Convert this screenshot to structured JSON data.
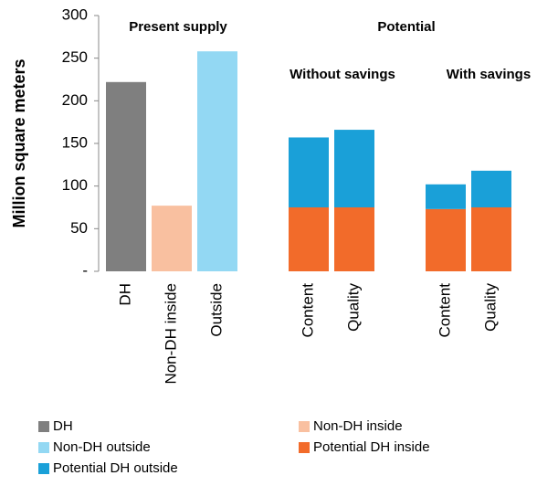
{
  "chart_data": {
    "type": "stacked_bar",
    "y_label": "Million square meters",
    "annotations": [
      "Present supply",
      "Potential",
      "Without savings",
      "With savings"
    ],
    "categories": [
      "DH",
      "Non-DH inside",
      "Outside",
      null,
      "Content",
      "Quality",
      null,
      "Content",
      "Quality"
    ],
    "series": [
      {
        "name": "DH",
        "color": "#7f7f7f",
        "values": [
          222,
          null,
          null,
          null,
          null,
          null,
          null,
          null,
          null
        ]
      },
      {
        "name": "Non-DH inside",
        "color": "#f9c0a0",
        "values": [
          null,
          77,
          null,
          null,
          null,
          null,
          null,
          null,
          null
        ]
      },
      {
        "name": "Non-DH outside",
        "color": "#93d8f3",
        "values": [
          null,
          null,
          258,
          null,
          null,
          null,
          null,
          null,
          null
        ]
      },
      {
        "name": "Potential DH inside",
        "color": "#f26b2a",
        "values": [
          null,
          null,
          null,
          null,
          75,
          75,
          null,
          73,
          75
        ]
      },
      {
        "name": "Potential DH outside",
        "color": "#1aa0d8",
        "values": [
          null,
          null,
          null,
          null,
          82,
          91,
          null,
          29,
          43
        ]
      }
    ],
    "ylim": [
      0,
      300
    ],
    "yticks": [
      {
        "value": 0,
        "label": "-"
      },
      50,
      100,
      150,
      200,
      250,
      300
    ],
    "grid": false
  }
}
